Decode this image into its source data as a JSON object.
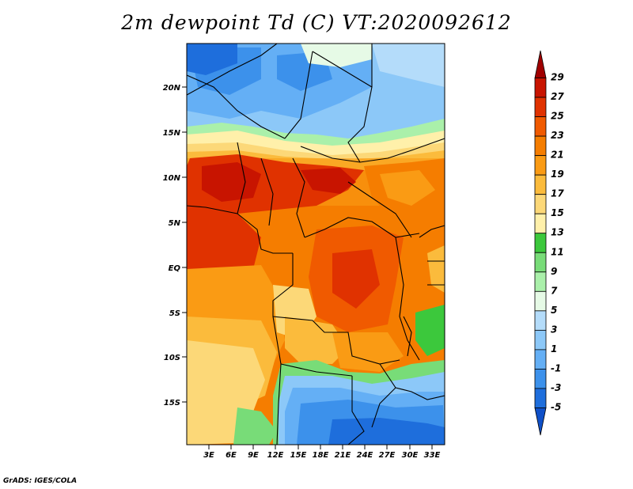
{
  "title": "2m dewpoint Td (C) VT:2020092612",
  "credit": "GrADS: IGES/COLA",
  "lat_labels": [
    "20N",
    "15N",
    "10N",
    "5N",
    "EQ",
    "5S",
    "10S",
    "15S"
  ],
  "lon_labels": [
    "3E",
    "6E",
    "9E",
    "12E",
    "15E",
    "18E",
    "21E",
    "24E",
    "27E",
    "30E",
    "33E"
  ],
  "colorbar": {
    "labels": [
      "29",
      "27",
      "25",
      "23",
      "21",
      "19",
      "17",
      "15",
      "13",
      "11",
      "9",
      "7",
      "5",
      "3",
      "1",
      "-1",
      "-3",
      "-5"
    ],
    "colors": [
      "#a00000",
      "#c81400",
      "#e03200",
      "#f05a00",
      "#f57d00",
      "#fa9b14",
      "#fbbb3c",
      "#fcd878",
      "#fff0aa",
      "#3cc83c",
      "#78dc78",
      "#aaf0aa",
      "#e6fae6",
      "#b4dcfa",
      "#8cc8f8",
      "#64aff5",
      "#3c91eb",
      "#1e6edc",
      "#0f50c8"
    ]
  },
  "field": {
    "variable": "2m dewpoint",
    "units": "C",
    "valid_time": "2020092612"
  }
}
